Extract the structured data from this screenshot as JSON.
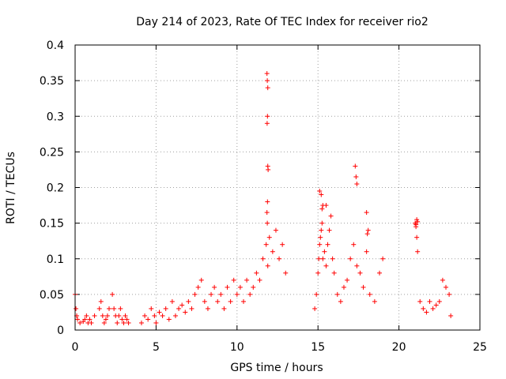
{
  "chart_data": {
    "type": "scatter",
    "title": "Day 214 of 2023, Rate Of TEC Index for receiver rio2",
    "xlabel": "GPS time / hours",
    "ylabel": "ROTI / TECUs",
    "xlim": [
      0,
      25
    ],
    "ylim": [
      0,
      0.4
    ],
    "xticks": [
      "0",
      "5",
      "10",
      "15",
      "20",
      "25"
    ],
    "yticks": [
      "0",
      "0.05",
      "0.1",
      "0.15",
      "0.2",
      "0.25",
      "0.3",
      "0.35",
      "0.4"
    ],
    "grid": true,
    "marker": "+",
    "color": "#ff0000",
    "series": [
      {
        "x": [
          0.0,
          0.05,
          0.1,
          0.15,
          0.3,
          0.5,
          0.6,
          0.7,
          0.8,
          0.9,
          1.0,
          1.2,
          1.5,
          1.6,
          1.7,
          1.8,
          1.9,
          2.0,
          2.1,
          2.3,
          2.4,
          2.5,
          2.6,
          2.7,
          2.8,
          2.9,
          3.0,
          3.1,
          3.2,
          3.3,
          4.1,
          4.3,
          4.5,
          4.7,
          4.9,
          5.0,
          5.2,
          5.4,
          5.6,
          5.8,
          6.0,
          6.2,
          6.4,
          6.6,
          6.8,
          7.0,
          7.2,
          7.4,
          7.6,
          7.8,
          8.0,
          8.2,
          8.4,
          8.6,
          8.8,
          9.0,
          9.2,
          9.4,
          9.6,
          9.8,
          10.0,
          10.2,
          10.4,
          10.6,
          10.8,
          11.0,
          11.2,
          11.4,
          11.6,
          11.8,
          11.9,
          12.0,
          12.2,
          12.4,
          12.6,
          12.8,
          13.0,
          11.85,
          11.87,
          11.9,
          11.88,
          11.86,
          11.9,
          11.92,
          11.88,
          11.85,
          11.87,
          14.8,
          14.9,
          15.0,
          15.05,
          15.1,
          15.15,
          15.2,
          15.25,
          15.3,
          15.4,
          15.5,
          15.6,
          15.7,
          15.8,
          15.9,
          16.0,
          16.2,
          16.4,
          16.6,
          16.8,
          17.0,
          17.2,
          17.4,
          17.6,
          17.8,
          18.0,
          18.2,
          18.5,
          18.8,
          19.0,
          15.1,
          15.2,
          15.25,
          15.3,
          15.5,
          17.3,
          17.35,
          17.4,
          18.0,
          18.1,
          18.05,
          21.0,
          21.05,
          21.1,
          21.15,
          21.3,
          21.5,
          21.7,
          21.9,
          22.1,
          22.3,
          22.5,
          22.7,
          22.9,
          23.1,
          23.2,
          21.1,
          21.15,
          21.05
        ],
        "y": [
          0.05,
          0.03,
          0.02,
          0.015,
          0.01,
          0.012,
          0.015,
          0.02,
          0.01,
          0.015,
          0.01,
          0.02,
          0.03,
          0.04,
          0.02,
          0.01,
          0.015,
          0.02,
          0.03,
          0.05,
          0.03,
          0.02,
          0.01,
          0.02,
          0.03,
          0.015,
          0.01,
          0.02,
          0.015,
          0.01,
          0.01,
          0.02,
          0.015,
          0.03,
          0.02,
          0.01,
          0.025,
          0.02,
          0.03,
          0.015,
          0.04,
          0.02,
          0.03,
          0.035,
          0.025,
          0.04,
          0.03,
          0.05,
          0.06,
          0.07,
          0.04,
          0.03,
          0.05,
          0.06,
          0.04,
          0.05,
          0.03,
          0.06,
          0.04,
          0.07,
          0.05,
          0.06,
          0.04,
          0.07,
          0.05,
          0.06,
          0.08,
          0.07,
          0.1,
          0.12,
          0.09,
          0.13,
          0.11,
          0.14,
          0.1,
          0.12,
          0.08,
          0.36,
          0.35,
          0.34,
          0.3,
          0.29,
          0.23,
          0.225,
          0.18,
          0.165,
          0.15,
          0.03,
          0.05,
          0.08,
          0.1,
          0.12,
          0.13,
          0.14,
          0.15,
          0.1,
          0.11,
          0.09,
          0.12,
          0.14,
          0.16,
          0.1,
          0.08,
          0.05,
          0.04,
          0.06,
          0.07,
          0.1,
          0.12,
          0.09,
          0.08,
          0.06,
          0.11,
          0.05,
          0.04,
          0.08,
          0.1,
          0.195,
          0.19,
          0.17,
          0.175,
          0.175,
          0.23,
          0.215,
          0.205,
          0.165,
          0.14,
          0.135,
          0.15,
          0.148,
          0.13,
          0.11,
          0.04,
          0.03,
          0.025,
          0.04,
          0.03,
          0.035,
          0.04,
          0.07,
          0.06,
          0.05,
          0.02,
          0.155,
          0.152,
          0.145
        ]
      }
    ]
  }
}
